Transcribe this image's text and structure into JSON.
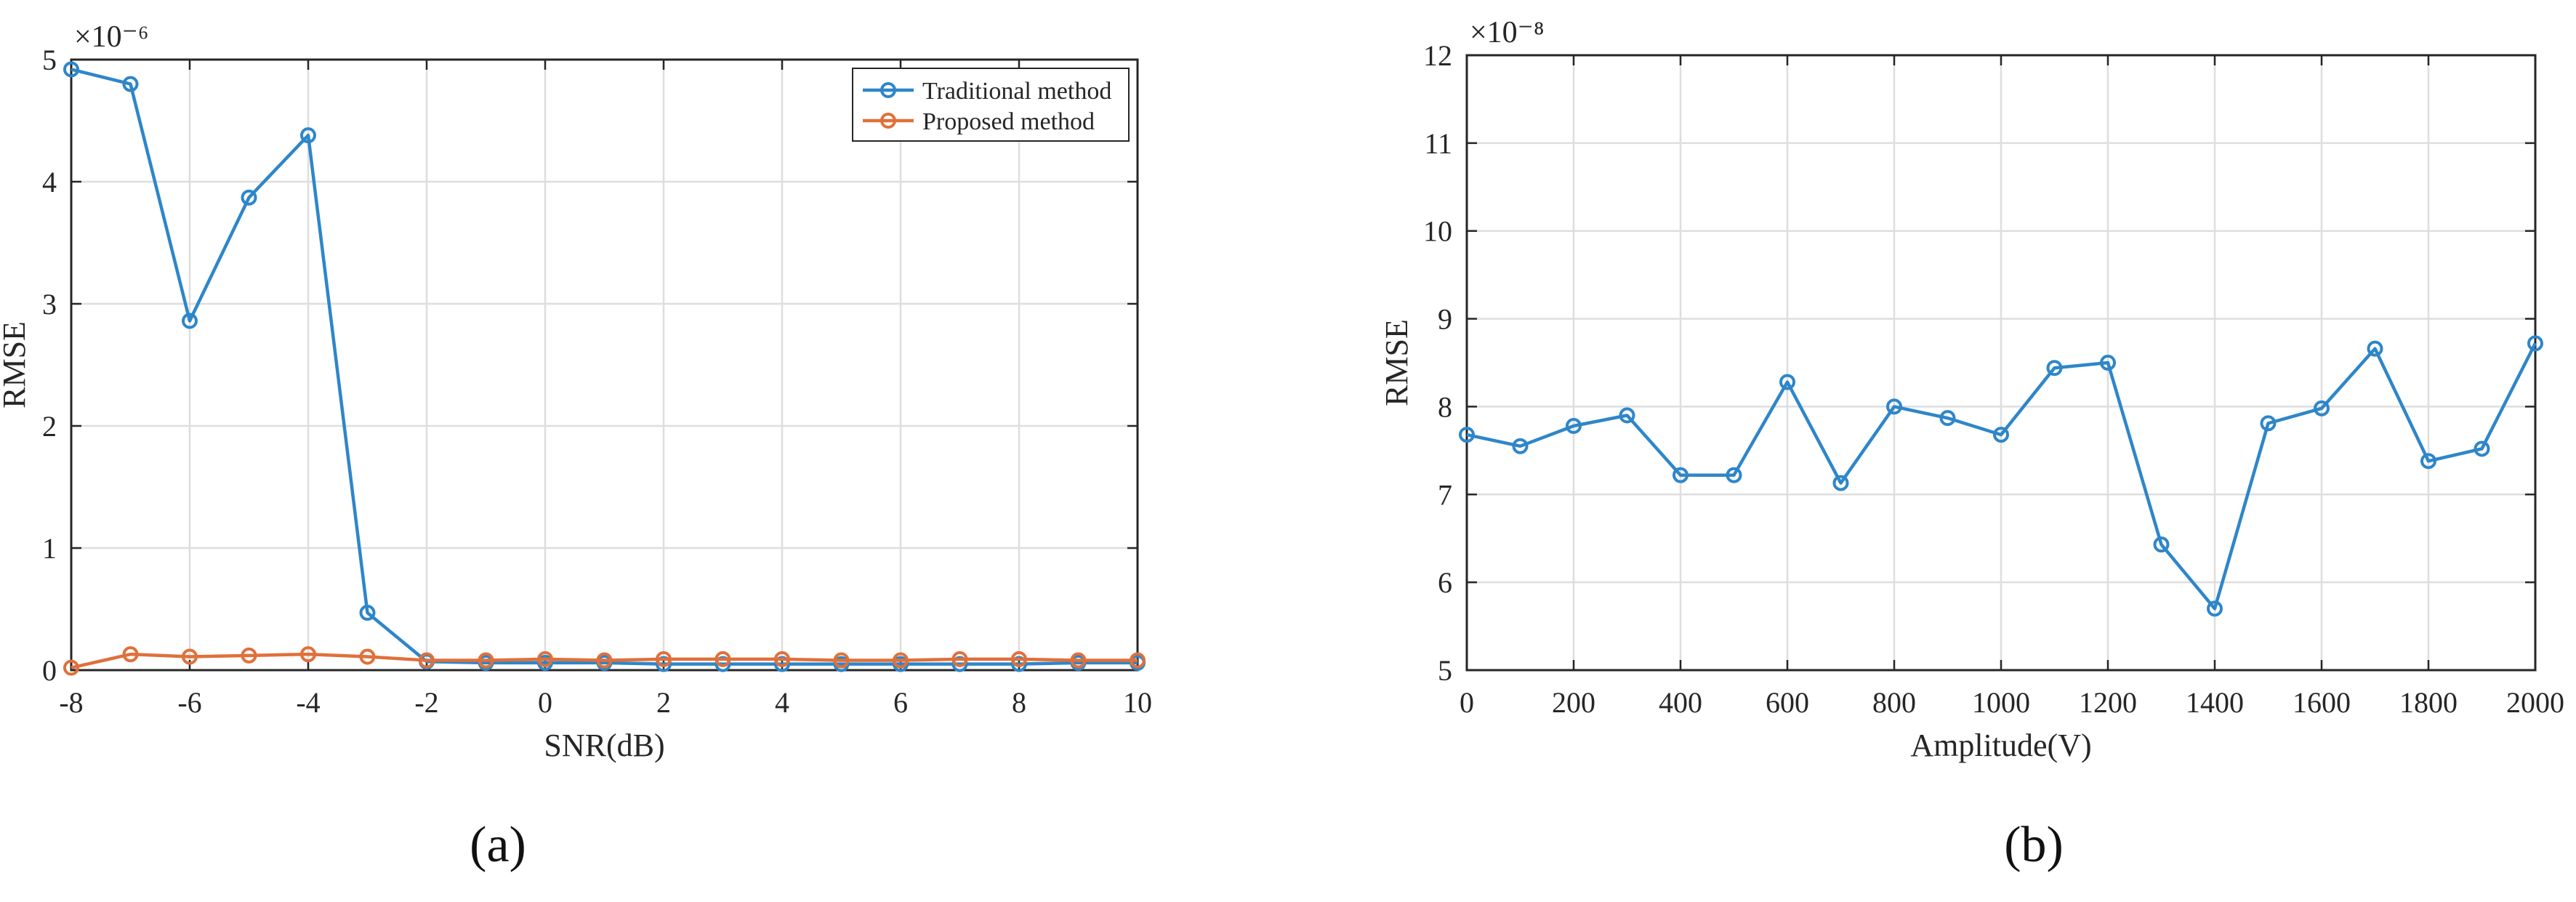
{
  "chart_data": [
    {
      "type": "line",
      "panel_label": "(a)",
      "xlabel": "SNR(dB)",
      "ylabel": "RMSE",
      "exponent_label": "×10⁻⁶",
      "xlim": [
        -8,
        10
      ],
      "ylim": [
        0,
        5
      ],
      "xticks": [
        -8,
        -6,
        -4,
        -2,
        0,
        2,
        4,
        6,
        8,
        10
      ],
      "yticks": [
        0,
        1,
        2,
        3,
        4,
        5
      ],
      "grid": true,
      "legend_position": "top-right",
      "x": [
        -8,
        -7,
        -6,
        -5,
        -4,
        -3,
        -2,
        -1,
        0,
        1,
        2,
        3,
        4,
        5,
        6,
        7,
        8,
        9,
        10
      ],
      "series": [
        {
          "name": "Traditional method",
          "color": "#2e86c9",
          "values": [
            4.92,
            4.8,
            2.86,
            3.87,
            4.38,
            0.47,
            0.07,
            0.06,
            0.06,
            0.06,
            0.05,
            0.05,
            0.05,
            0.05,
            0.05,
            0.05,
            0.05,
            0.06,
            0.06
          ]
        },
        {
          "name": "Proposed method",
          "color": "#e0703a",
          "values": [
            0.02,
            0.13,
            0.11,
            0.12,
            0.13,
            0.11,
            0.08,
            0.08,
            0.09,
            0.08,
            0.09,
            0.09,
            0.09,
            0.08,
            0.08,
            0.09,
            0.09,
            0.08,
            0.08
          ]
        }
      ]
    },
    {
      "type": "line",
      "panel_label": "(b)",
      "xlabel": "Amplitude(V)",
      "ylabel": "RMSE",
      "exponent_label": "×10⁻⁸",
      "xlim": [
        0,
        2000
      ],
      "ylim": [
        5,
        12
      ],
      "xticks": [
        0,
        200,
        400,
        600,
        800,
        1000,
        1200,
        1400,
        1600,
        1800,
        2000
      ],
      "yticks": [
        5,
        6,
        7,
        8,
        9,
        10,
        11,
        12
      ],
      "grid": true,
      "x": [
        0,
        100,
        200,
        300,
        400,
        500,
        600,
        700,
        800,
        900,
        1000,
        1100,
        1200,
        1300,
        1400,
        1500,
        1600,
        1700,
        1800,
        1900,
        2000
      ],
      "series": [
        {
          "color": "#2e86c9",
          "values": [
            7.68,
            7.55,
            7.78,
            7.9,
            7.22,
            7.22,
            8.28,
            7.13,
            8.0,
            7.87,
            7.68,
            8.44,
            8.5,
            6.43,
            5.7,
            7.81,
            7.98,
            8.66,
            7.38,
            7.52,
            8.72
          ]
        }
      ]
    }
  ]
}
